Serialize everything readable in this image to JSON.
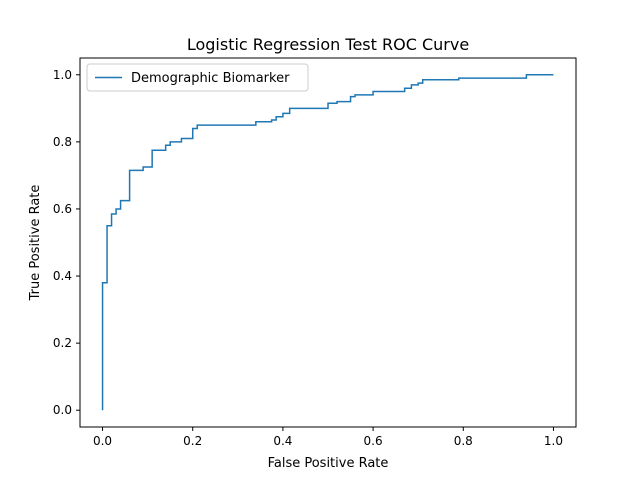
{
  "chart_data": {
    "type": "line",
    "title": "Logistic Regression Test ROC Curve",
    "xlabel": "False Positive Rate",
    "ylabel": "True Positive Rate",
    "xlim": [
      -0.05,
      1.05
    ],
    "ylim": [
      -0.05,
      1.05
    ],
    "xticks": [
      0.0,
      0.2,
      0.4,
      0.6,
      0.8,
      1.0
    ],
    "yticks": [
      0.0,
      0.2,
      0.4,
      0.6,
      0.8,
      1.0
    ],
    "xtick_labels": [
      "0.0",
      "0.2",
      "0.4",
      "0.6",
      "0.8",
      "1.0"
    ],
    "ytick_labels": [
      "0.0",
      "0.2",
      "0.4",
      "0.6",
      "0.8",
      "1.0"
    ],
    "grid": false,
    "legend": "top-left",
    "series": [
      {
        "name": "Demographic Biomarker",
        "color": "#1f77b4",
        "step": true,
        "x": [
          0.0,
          0.0,
          0.0,
          0.01,
          0.01,
          0.02,
          0.02,
          0.03,
          0.03,
          0.04,
          0.04,
          0.06,
          0.06,
          0.09,
          0.09,
          0.11,
          0.11,
          0.14,
          0.14,
          0.15,
          0.15,
          0.175,
          0.175,
          0.2,
          0.2,
          0.21,
          0.21,
          0.34,
          0.34,
          0.375,
          0.375,
          0.385,
          0.385,
          0.4,
          0.4,
          0.415,
          0.415,
          0.5,
          0.5,
          0.52,
          0.52,
          0.55,
          0.55,
          0.56,
          0.56,
          0.6,
          0.6,
          0.67,
          0.67,
          0.685,
          0.685,
          0.7,
          0.7,
          0.71,
          0.71,
          0.79,
          0.79,
          0.94,
          0.94,
          1.0
        ],
        "y": [
          0.0,
          0.38,
          0.38,
          0.38,
          0.55,
          0.55,
          0.585,
          0.585,
          0.6,
          0.6,
          0.625,
          0.625,
          0.715,
          0.715,
          0.725,
          0.725,
          0.775,
          0.775,
          0.79,
          0.79,
          0.8,
          0.8,
          0.81,
          0.81,
          0.84,
          0.84,
          0.85,
          0.85,
          0.86,
          0.86,
          0.865,
          0.865,
          0.875,
          0.875,
          0.885,
          0.885,
          0.9,
          0.9,
          0.915,
          0.915,
          0.92,
          0.92,
          0.935,
          0.935,
          0.94,
          0.94,
          0.95,
          0.95,
          0.96,
          0.96,
          0.97,
          0.97,
          0.975,
          0.975,
          0.985,
          0.985,
          0.99,
          0.99,
          1.0,
          1.0
        ]
      }
    ]
  }
}
